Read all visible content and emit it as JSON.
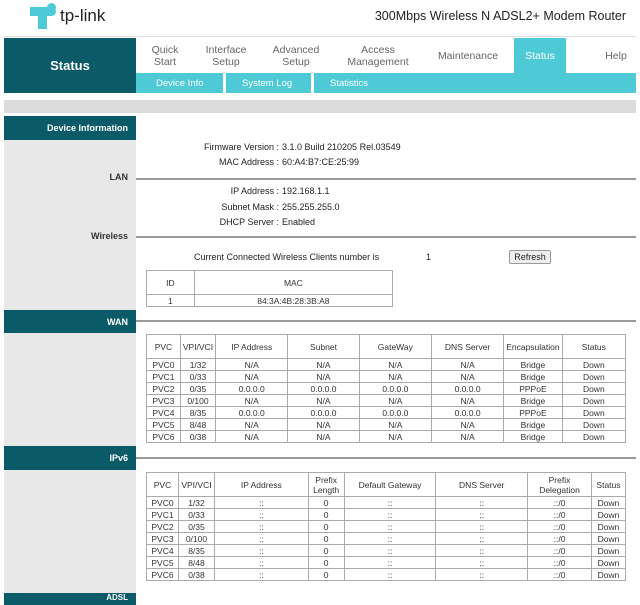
{
  "header": {
    "brand": "tp-link",
    "product": "300Mbps Wireless N ADSL2+ Modem Router",
    "brand_color": "#4ecad6",
    "dark_color": "#0b5a68"
  },
  "nav": {
    "section": "Status",
    "tabs": [
      {
        "label": "Quick Start"
      },
      {
        "label": "Interface Setup"
      },
      {
        "label": "Advanced Setup"
      },
      {
        "label": "Access Management"
      },
      {
        "label": "Maintenance"
      },
      {
        "label": "Status",
        "active": true
      },
      {
        "label": "Help"
      }
    ],
    "subtabs": [
      {
        "label": "Device Info"
      },
      {
        "label": "System Log"
      },
      {
        "label": "Statistics"
      }
    ]
  },
  "sections": {
    "device_info": "Device Information",
    "lan": "LAN",
    "wireless": "Wireless",
    "wan": "WAN",
    "ipv6": "IPv6",
    "adsl": "ADSL"
  },
  "device": {
    "firmware_label": "Firmware Version :",
    "firmware": "3.1.0 Build 210205 Rel.03549",
    "mac_label": "MAC Address :",
    "mac": "60:A4:B7:CE:25:99"
  },
  "lan": {
    "ip_label": "IP Address :",
    "ip": "192.168.1.1",
    "mask_label": "Subnet Mask :",
    "mask": "255.255.255.0",
    "dhcp_label": "DHCP Server :",
    "dhcp": "Enabled"
  },
  "wireless": {
    "clients_label": "Current Connected Wireless Clients number is",
    "clients": "1",
    "refresh": "Refresh",
    "columns": [
      "ID",
      "MAC"
    ],
    "rows": [
      [
        "1",
        "84:3A:4B:28:3B:A8"
      ]
    ]
  },
  "wan": {
    "columns": [
      "PVC",
      "VPI/VCI",
      "IP Address",
      "Subnet",
      "GateWay",
      "DNS Server",
      "Encapsulation",
      "Status"
    ],
    "rows": [
      [
        "PVC0",
        "1/32",
        "N/A",
        "N/A",
        "N/A",
        "N/A",
        "Bridge",
        "Down"
      ],
      [
        "PVC1",
        "0/33",
        "N/A",
        "N/A",
        "N/A",
        "N/A",
        "Bridge",
        "Down"
      ],
      [
        "PVC2",
        "0/35",
        "0.0.0.0",
        "0.0.0.0",
        "0.0.0.0",
        "0.0.0.0",
        "PPPoE",
        "Down"
      ],
      [
        "PVC3",
        "0/100",
        "N/A",
        "N/A",
        "N/A",
        "N/A",
        "Bridge",
        "Down"
      ],
      [
        "PVC4",
        "8/35",
        "0.0.0.0",
        "0.0.0.0",
        "0.0.0.0",
        "0.0.0.0",
        "PPPoE",
        "Down"
      ],
      [
        "PVC5",
        "8/48",
        "N/A",
        "N/A",
        "N/A",
        "N/A",
        "Bridge",
        "Down"
      ],
      [
        "PVC6",
        "0/38",
        "N/A",
        "N/A",
        "N/A",
        "N/A",
        "Bridge",
        "Down"
      ]
    ]
  },
  "ipv6": {
    "columns": [
      "PVC",
      "VPI/VCI",
      "IP Address",
      "Prefix Length",
      "Default Gateway",
      "DNS Server",
      "Prefix Delegation",
      "Status"
    ],
    "rows": [
      [
        "PVC0",
        "1/32",
        "::",
        "0",
        "::",
        "::",
        "::/0",
        "Down"
      ],
      [
        "PVC1",
        "0/33",
        "::",
        "0",
        "::",
        "::",
        "::/0",
        "Down"
      ],
      [
        "PVC2",
        "0/35",
        "::",
        "0",
        "::",
        "::",
        "::/0",
        "Down"
      ],
      [
        "PVC3",
        "0/100",
        "::",
        "0",
        "::",
        "::",
        "::/0",
        "Down"
      ],
      [
        "PVC4",
        "8/35",
        "::",
        "0",
        "::",
        "::",
        "::/0",
        "Down"
      ],
      [
        "PVC5",
        "8/48",
        "::",
        "0",
        "::",
        "::",
        "::/0",
        "Down"
      ],
      [
        "PVC6",
        "0/38",
        "::",
        "0",
        "::",
        "::",
        "::/0",
        "Down"
      ]
    ]
  }
}
